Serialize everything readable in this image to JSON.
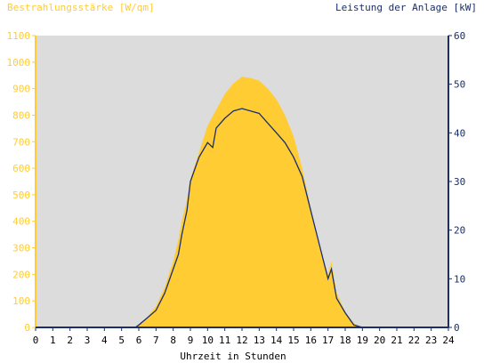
{
  "chart_data": {
    "type": "area",
    "ylabel_left": "Bestrahlungsstärke [W/qm]",
    "ylabel_right": "Leistung der Anlage [kW]",
    "xlabel": "Uhrzeit in Stunden",
    "xlim": [
      0,
      24
    ],
    "ylim_left": [
      0,
      1100
    ],
    "ylim_right": [
      0,
      60
    ],
    "x_ticks": [
      "0",
      "1",
      "2",
      "3",
      "4",
      "5",
      "6",
      "7",
      "8",
      "9",
      "10",
      "11",
      "12",
      "13",
      "14",
      "15",
      "16",
      "17",
      "18",
      "19",
      "20",
      "21",
      "22",
      "23",
      "24"
    ],
    "y_ticks_left": [
      "0",
      "100",
      "200",
      "300",
      "400",
      "500",
      "600",
      "700",
      "800",
      "900",
      "1000",
      "1100"
    ],
    "y_ticks_right": [
      "0",
      "10",
      "20",
      "30",
      "40",
      "50",
      "60"
    ],
    "grid": false,
    "colors": {
      "irradiance": "#ffcc33",
      "power": "#1a2f6b",
      "plot_bg": "#dcdcdc",
      "left_axis": "#ffcc33",
      "right_axis": "#1a2f6b"
    },
    "series": [
      {
        "axis": "left",
        "style": "filled area",
        "x": [
          0,
          5.8,
          6.0,
          6.3,
          6.5,
          7.0,
          7.5,
          8.0,
          8.3,
          8.5,
          8.8,
          9.0,
          9.5,
          10.0,
          10.5,
          11.0,
          11.5,
          12.0,
          12.5,
          13.0,
          13.5,
          14.0,
          14.5,
          15.0,
          15.5,
          16.0,
          16.5,
          17.0,
          17.2,
          17.5,
          18.0,
          18.5,
          19.0,
          24
        ],
        "y": [
          0,
          0,
          10,
          20,
          40,
          80,
          150,
          250,
          330,
          400,
          480,
          560,
          660,
          760,
          820,
          880,
          920,
          945,
          940,
          930,
          900,
          860,
          800,
          720,
          600,
          450,
          300,
          200,
          250,
          130,
          60,
          15,
          0,
          0
        ]
      },
      {
        "axis": "right",
        "style": "line",
        "x": [
          0,
          5.8,
          6.0,
          6.5,
          7.0,
          7.5,
          8.0,
          8.3,
          8.5,
          8.8,
          9.0,
          9.5,
          10.0,
          10.3,
          10.5,
          11.0,
          11.5,
          12.0,
          12.5,
          13.0,
          13.5,
          14.0,
          14.5,
          15.0,
          15.5,
          16.0,
          16.5,
          17.0,
          17.2,
          17.5,
          18.0,
          18.5,
          19.0,
          24
        ],
        "y": [
          0,
          0,
          0.5,
          2,
          3.5,
          7,
          12,
          15,
          19,
          24,
          30,
          35,
          38,
          37,
          41,
          43,
          44.5,
          45,
          44.5,
          44,
          42,
          40,
          38,
          35,
          31,
          24,
          17,
          10,
          12,
          6,
          3,
          0.5,
          0,
          0
        ]
      }
    ]
  }
}
